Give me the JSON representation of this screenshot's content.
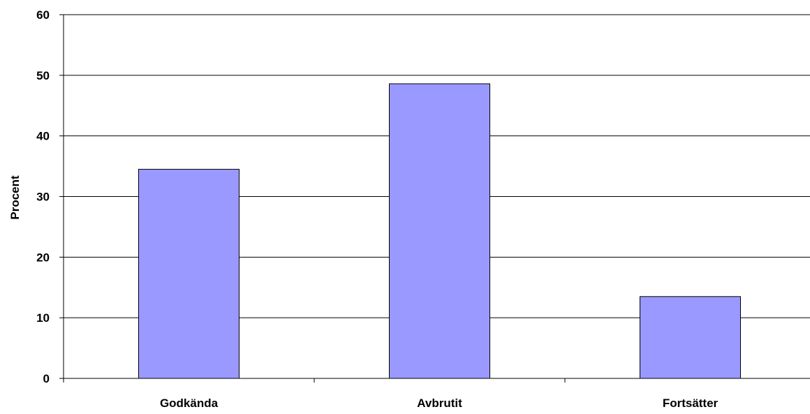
{
  "chart_data": {
    "type": "bar",
    "categories": [
      "Godkända",
      "Avbrutit",
      "Fortsätter"
    ],
    "values": [
      34.5,
      48.6,
      13.5
    ],
    "title": "",
    "xlabel": "",
    "ylabel": "Procent",
    "ylim": [
      0,
      60
    ],
    "yticks": [
      0,
      10,
      20,
      30,
      40,
      50,
      60
    ],
    "grid": true,
    "legend": "none",
    "colors": {
      "bar_fill": "#9999ff",
      "bar_stroke": "#000000",
      "grid": "#000000",
      "axis": "#000000",
      "background": "#ffffff"
    }
  }
}
